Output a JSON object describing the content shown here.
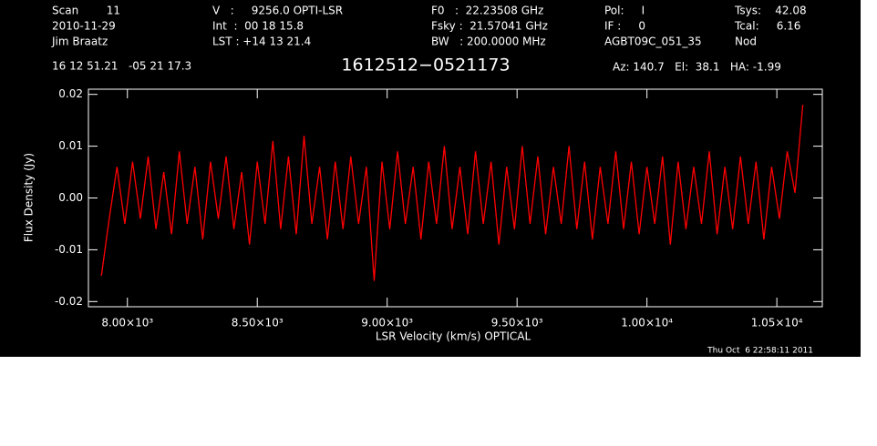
{
  "chart_data": {
    "type": "line",
    "title": "1612512−0521173",
    "header": [
      [
        "Scan        11",
        "2010-11-29",
        "Jim Braatz"
      ],
      [
        "V   :     9256.0 OPTI-LSR",
        "Int  :  00 18 15.8",
        "LST : +14 13 21.4"
      ],
      [
        "F0   :  22.23508 GHz",
        "Fsky :  21.57041 GHz",
        "BW   : 200.0000 MHz"
      ],
      [
        "Pol:     I",
        "IF :     0",
        "AGBT09C_051_35"
      ],
      [
        "Tsys:    42.08",
        "Tcal:     6.16",
        "Nod"
      ]
    ],
    "position": "16 12 51.21   -05 21 17.3",
    "pointing": "Az: 140.7   El:  38.1   HA: -1.99",
    "timestamp": "Thu Oct  6 22:58:11 2011",
    "xlabel": "LSR Velocity (km/s) OPTICAL",
    "ylabel": "Flux Density (Jy)",
    "xlim": [
      7850,
      10675
    ],
    "ylim": [
      -0.021,
      0.021
    ],
    "xticks": [
      {
        "value": 8000,
        "label": "8.00×10³"
      },
      {
        "value": 8500,
        "label": "8.50×10³"
      },
      {
        "value": 9000,
        "label": "9.00×10³"
      },
      {
        "value": 9500,
        "label": "9.50×10³"
      },
      {
        "value": 10000,
        "label": "1.00×10⁴"
      },
      {
        "value": 10500,
        "label": "1.05×10⁴"
      }
    ],
    "yticks": [
      -0.02,
      -0.01,
      {
        "value": 0,
        "label": "0.00"
      },
      0.01,
      0.02
    ],
    "series": [
      {
        "name": "spectrum",
        "color": "#ff0000",
        "x": [
          7900,
          7930,
          7960,
          7990,
          8020,
          8050,
          8080,
          8110,
          8140,
          8170,
          8200,
          8230,
          8260,
          8290,
          8320,
          8350,
          8380,
          8410,
          8440,
          8470,
          8500,
          8530,
          8560,
          8590,
          8620,
          8650,
          8680,
          8710,
          8740,
          8770,
          8800,
          8830,
          8860,
          8890,
          8920,
          8950,
          8980,
          9010,
          9040,
          9070,
          9100,
          9130,
          9160,
          9190,
          9220,
          9250,
          9280,
          9310,
          9340,
          9370,
          9400,
          9430,
          9460,
          9490,
          9520,
          9550,
          9580,
          9610,
          9640,
          9670,
          9700,
          9730,
          9760,
          9790,
          9820,
          9850,
          9880,
          9910,
          9940,
          9970,
          10000,
          10030,
          10060,
          10090,
          10120,
          10150,
          10180,
          10210,
          10240,
          10270,
          10300,
          10330,
          10360,
          10390,
          10420,
          10450,
          10480,
          10510,
          10540,
          10570,
          10600
        ],
        "values": [
          -0.015,
          -0.004,
          0.006,
          -0.005,
          0.007,
          -0.004,
          0.008,
          -0.006,
          0.005,
          -0.007,
          0.009,
          -0.005,
          0.006,
          -0.008,
          0.007,
          -0.004,
          0.008,
          -0.006,
          0.005,
          -0.009,
          0.007,
          -0.005,
          0.011,
          -0.006,
          0.008,
          -0.007,
          0.012,
          -0.005,
          0.006,
          -0.008,
          0.007,
          -0.006,
          0.008,
          -0.005,
          0.006,
          -0.016,
          0.007,
          -0.006,
          0.009,
          -0.005,
          0.006,
          -0.008,
          0.007,
          -0.005,
          0.01,
          -0.006,
          0.006,
          -0.007,
          0.009,
          -0.005,
          0.007,
          -0.009,
          0.006,
          -0.006,
          0.01,
          -0.005,
          0.008,
          -0.007,
          0.006,
          -0.005,
          0.01,
          -0.006,
          0.007,
          -0.008,
          0.006,
          -0.005,
          0.009,
          -0.006,
          0.007,
          -0.007,
          0.006,
          -0.005,
          0.008,
          -0.009,
          0.007,
          -0.006,
          0.006,
          -0.005,
          0.009,
          -0.007,
          0.006,
          -0.006,
          0.008,
          -0.005,
          0.007,
          -0.008,
          0.006,
          -0.004,
          0.009,
          0.001,
          0.018
        ]
      }
    ]
  }
}
